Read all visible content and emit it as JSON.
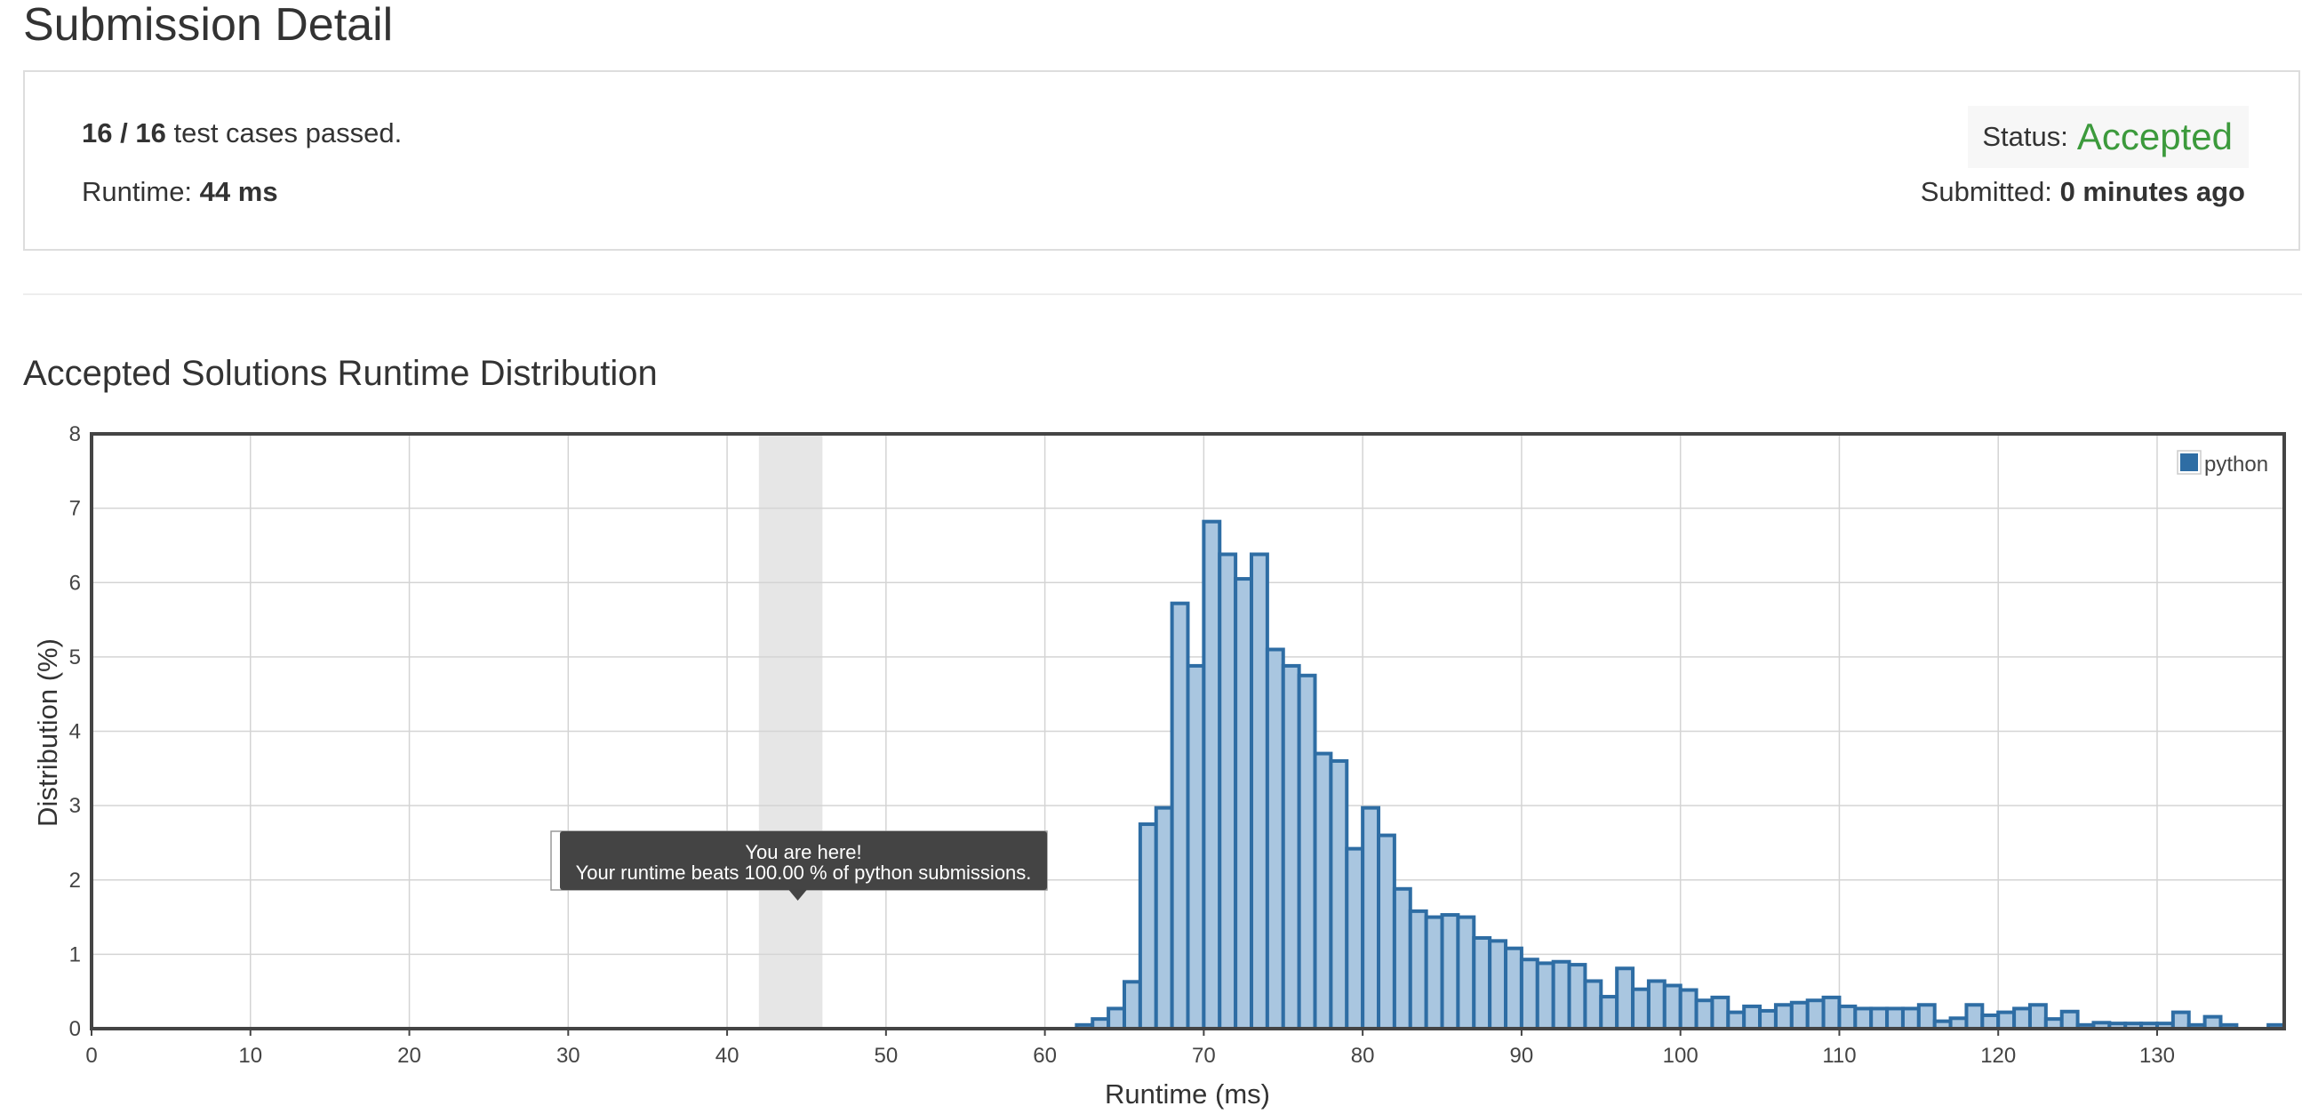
{
  "page": {
    "title": "Submission Detail"
  },
  "summary": {
    "passed": "16",
    "separator": "/",
    "total": "16",
    "passed_text": "test cases passed.",
    "runtime_label": "Runtime:",
    "runtime_value": "44 ms",
    "status_label": "Status:",
    "status_value": "Accepted",
    "submitted_label": "Submitted:",
    "submitted_value": "0 minutes ago"
  },
  "colors": {
    "accepted": "#3c9a3c",
    "bar_fill": "#a9c6e0",
    "bar_stroke": "#2e6da4",
    "highlight_band": "#e6e6e6",
    "tooltip_bg": "#444444"
  },
  "chart_data": {
    "type": "bar",
    "title": "Accepted Solutions Runtime Distribution",
    "xlabel": "Runtime (ms)",
    "ylabel": "Distribution (%)",
    "xlim": [
      0,
      138
    ],
    "ylim": [
      0,
      8
    ],
    "xticks": [
      0,
      10,
      20,
      30,
      40,
      50,
      60,
      70,
      80,
      90,
      100,
      110,
      120,
      130
    ],
    "yticks": [
      0,
      1,
      2,
      3,
      4,
      5,
      6,
      7,
      8
    ],
    "grid": true,
    "legend_position": "top-right",
    "bin_width": 1,
    "highlight": {
      "from": 42,
      "to": 46
    },
    "tooltip": {
      "line1": "You are here!",
      "line2": "Your runtime beats 100.00 % of python submissions."
    },
    "series": [
      {
        "name": "python",
        "x": [
          62,
          63,
          64,
          65,
          66,
          67,
          68,
          69,
          70,
          71,
          72,
          73,
          74,
          75,
          76,
          77,
          78,
          79,
          80,
          81,
          82,
          83,
          84,
          85,
          86,
          87,
          88,
          89,
          90,
          91,
          92,
          93,
          94,
          95,
          96,
          97,
          98,
          99,
          100,
          101,
          102,
          103,
          104,
          105,
          106,
          107,
          108,
          109,
          110,
          111,
          112,
          113,
          114,
          115,
          116,
          117,
          118,
          119,
          120,
          121,
          122,
          123,
          124,
          125,
          126,
          127,
          128,
          129,
          130,
          131,
          132,
          133,
          134,
          135,
          136,
          137
        ],
        "values": [
          0.05,
          0.13,
          0.27,
          0.63,
          2.75,
          2.97,
          5.72,
          4.88,
          6.82,
          6.38,
          6.05,
          6.38,
          5.1,
          4.88,
          4.75,
          3.7,
          3.6,
          2.42,
          2.97,
          2.6,
          1.88,
          1.58,
          1.5,
          1.53,
          1.5,
          1.22,
          1.18,
          1.08,
          0.93,
          0.88,
          0.9,
          0.86,
          0.64,
          0.43,
          0.81,
          0.53,
          0.64,
          0.58,
          0.52,
          0.38,
          0.42,
          0.22,
          0.3,
          0.24,
          0.32,
          0.35,
          0.38,
          0.42,
          0.3,
          0.27,
          0.27,
          0.27,
          0.27,
          0.32,
          0.1,
          0.14,
          0.32,
          0.18,
          0.22,
          0.27,
          0.32,
          0.13,
          0.23,
          0.05,
          0.08,
          0.07,
          0.07,
          0.07,
          0.07,
          0.22,
          0.05,
          0.16,
          0.05,
          0,
          0,
          0.05
        ]
      }
    ]
  }
}
